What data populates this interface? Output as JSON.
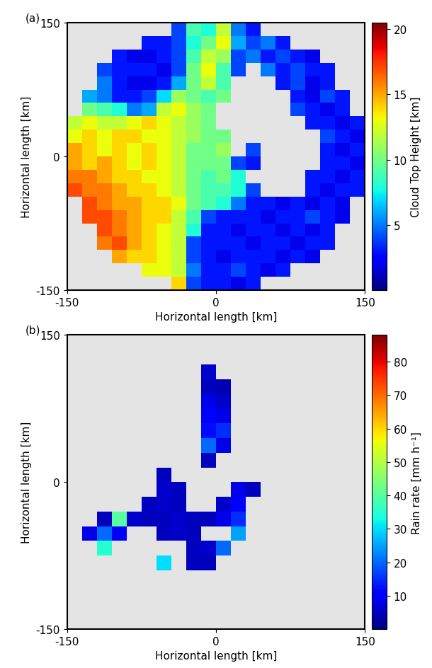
{
  "chart_data": [
    {
      "type": "heatmap",
      "panel_label": "(a)",
      "x_label": "Horizontal length [km]",
      "y_label": "Horizontal length [km]",
      "xlim": [
        -150,
        150
      ],
      "ylim": [
        -150,
        150
      ],
      "xticks": [
        -150,
        0,
        150
      ],
      "yticks": [
        -150,
        0,
        150
      ],
      "color": "jet",
      "colorbar_label": "Cloud Top Height [km]",
      "colorbar_lim": [
        0,
        20.5
      ],
      "colorbar_ticks": [
        5,
        10,
        15,
        20
      ],
      "cells": [
        [
          null,
          null,
          null,
          null,
          null,
          null,
          null,
          4,
          9,
          8,
          12,
          5,
          3,
          null,
          null,
          null,
          null,
          null,
          null,
          null
        ],
        [
          null,
          null,
          null,
          null,
          null,
          3,
          3,
          4,
          8,
          10,
          13,
          6,
          4,
          5,
          3,
          null,
          null,
          null,
          null,
          null
        ],
        [
          null,
          null,
          null,
          3,
          2,
          2,
          3,
          4,
          9,
          12,
          11,
          4,
          5,
          3,
          4,
          3,
          2,
          null,
          null,
          null
        ],
        [
          null,
          null,
          4,
          3,
          3,
          3,
          2,
          4,
          10,
          13,
          9,
          4,
          null,
          5,
          3,
          4,
          3,
          3,
          null,
          null
        ],
        [
          null,
          null,
          5,
          3,
          2,
          2,
          3,
          6,
          10,
          12,
          9,
          null,
          null,
          null,
          3,
          4,
          2,
          3,
          null,
          null
        ],
        [
          null,
          6,
          5,
          3,
          3,
          4,
          7,
          11,
          10,
          9,
          10,
          null,
          null,
          null,
          null,
          3,
          2,
          4,
          3,
          null
        ],
        [
          null,
          10,
          9,
          8,
          5,
          6,
          12,
          13,
          11,
          10,
          null,
          null,
          null,
          null,
          null,
          4,
          3,
          2,
          3,
          null
        ],
        [
          12,
          13,
          12,
          12,
          13,
          14,
          13,
          12,
          11,
          10,
          null,
          null,
          null,
          null,
          null,
          null,
          3,
          3,
          2,
          3
        ],
        [
          13,
          14,
          13,
          14,
          14,
          13,
          13,
          12,
          11,
          10,
          10,
          null,
          null,
          null,
          null,
          null,
          null,
          4,
          3,
          2
        ],
        [
          15,
          14,
          13,
          14,
          13,
          14,
          13,
          12,
          10,
          10,
          11,
          null,
          4,
          null,
          null,
          null,
          null,
          3,
          2,
          3
        ],
        [
          15,
          14,
          15,
          14,
          13,
          14,
          13,
          12,
          10,
          10,
          10,
          4,
          3,
          null,
          null,
          null,
          null,
          3,
          3,
          2
        ],
        [
          16,
          16,
          15,
          14,
          14,
          13,
          13,
          12,
          10,
          9,
          10,
          8,
          null,
          null,
          null,
          null,
          3,
          3,
          2,
          3
        ],
        [
          17,
          16,
          16,
          15,
          14,
          14,
          13,
          12,
          10,
          9,
          9,
          8,
          4,
          null,
          null,
          null,
          3,
          2,
          3,
          3
        ],
        [
          null,
          17,
          16,
          15,
          15,
          14,
          14,
          13,
          10,
          9,
          8,
          5,
          3,
          3,
          2,
          3,
          2,
          3,
          2,
          null
        ],
        [
          null,
          17,
          17,
          16,
          15,
          14,
          14,
          12,
          9,
          4,
          3,
          3,
          3,
          2,
          3,
          3,
          4,
          3,
          2,
          null
        ],
        [
          null,
          null,
          17,
          16,
          15,
          14,
          13,
          12,
          8,
          3,
          3,
          2,
          3,
          3,
          2,
          3,
          2,
          3,
          null,
          null
        ],
        [
          null,
          null,
          16,
          17,
          15,
          14,
          13,
          12,
          4,
          3,
          3,
          3,
          2,
          3,
          3,
          2,
          3,
          3,
          null,
          null
        ],
        [
          null,
          null,
          null,
          15,
          14,
          14,
          13,
          12,
          4,
          3,
          2,
          3,
          3,
          3,
          2,
          3,
          2,
          null,
          null,
          null
        ],
        [
          null,
          null,
          null,
          null,
          null,
          13,
          13,
          12,
          5,
          3,
          3,
          4,
          3,
          2,
          3,
          null,
          null,
          null,
          null,
          null
        ],
        [
          null,
          null,
          null,
          null,
          null,
          null,
          null,
          14,
          4,
          3,
          3,
          2,
          3,
          null,
          null,
          null,
          null,
          null,
          null,
          null
        ]
      ]
    },
    {
      "type": "heatmap",
      "panel_label": "(b)",
      "x_label": "Horizontal length [km]",
      "y_label": "Horizontal length [km]",
      "xlim": [
        -150,
        150
      ],
      "ylim": [
        -150,
        150
      ],
      "xticks": [
        -150,
        0,
        150
      ],
      "yticks": [
        -150,
        0,
        150
      ],
      "color": "jet",
      "colorbar_label": "Rain rate [mm h⁻¹]",
      "colorbar_lim": [
        0,
        88
      ],
      "colorbar_ticks": [
        10,
        20,
        30,
        40,
        50,
        60,
        70,
        80
      ],
      "cells": [
        [
          null,
          null,
          null,
          null,
          null,
          null,
          null,
          null,
          null,
          null,
          null,
          null,
          null,
          null,
          null,
          null,
          null,
          null,
          null,
          null
        ],
        [
          null,
          null,
          null,
          null,
          null,
          null,
          null,
          null,
          null,
          null,
          null,
          null,
          null,
          null,
          null,
          null,
          null,
          null,
          null,
          null
        ],
        [
          null,
          null,
          null,
          null,
          null,
          null,
          null,
          null,
          null,
          6,
          null,
          null,
          null,
          null,
          null,
          null,
          null,
          null,
          null,
          null
        ],
        [
          null,
          null,
          null,
          null,
          null,
          null,
          null,
          null,
          null,
          5,
          4,
          null,
          null,
          null,
          null,
          null,
          null,
          null,
          null,
          null
        ],
        [
          null,
          null,
          null,
          null,
          null,
          null,
          null,
          null,
          null,
          8,
          6,
          null,
          null,
          null,
          null,
          null,
          null,
          null,
          null,
          null
        ],
        [
          null,
          null,
          null,
          null,
          null,
          null,
          null,
          null,
          null,
          10,
          8,
          null,
          null,
          null,
          null,
          null,
          null,
          null,
          null,
          null
        ],
        [
          null,
          null,
          null,
          null,
          null,
          null,
          null,
          null,
          null,
          12,
          15,
          null,
          null,
          null,
          null,
          null,
          null,
          null,
          null,
          null
        ],
        [
          null,
          null,
          null,
          null,
          null,
          null,
          null,
          null,
          null,
          20,
          8,
          null,
          null,
          null,
          null,
          null,
          null,
          null,
          null,
          null
        ],
        [
          null,
          null,
          null,
          null,
          null,
          null,
          null,
          null,
          null,
          5,
          null,
          null,
          null,
          null,
          null,
          null,
          null,
          null,
          null,
          null
        ],
        [
          null,
          null,
          null,
          null,
          null,
          null,
          5,
          null,
          null,
          null,
          null,
          null,
          null,
          null,
          null,
          null,
          null,
          null,
          null,
          null
        ],
        [
          null,
          null,
          null,
          null,
          null,
          null,
          6,
          5,
          null,
          null,
          null,
          8,
          5,
          null,
          null,
          null,
          null,
          null,
          null,
          null
        ],
        [
          null,
          null,
          null,
          null,
          null,
          5,
          6,
          5,
          null,
          null,
          6,
          10,
          null,
          null,
          null,
          null,
          null,
          null,
          null,
          null
        ],
        [
          null,
          null,
          5,
          40,
          6,
          5,
          5,
          6,
          5,
          5,
          8,
          15,
          null,
          null,
          null,
          null,
          null,
          null,
          null,
          null
        ],
        [
          null,
          8,
          20,
          10,
          null,
          null,
          5,
          6,
          5,
          null,
          null,
          25,
          null,
          null,
          null,
          null,
          null,
          null,
          null,
          null
        ],
        [
          null,
          null,
          35,
          null,
          null,
          null,
          null,
          null,
          5,
          6,
          20,
          null,
          null,
          null,
          null,
          null,
          null,
          null,
          null,
          null
        ],
        [
          null,
          null,
          null,
          null,
          null,
          null,
          30,
          null,
          5,
          5,
          null,
          null,
          null,
          null,
          null,
          null,
          null,
          null,
          null,
          null
        ],
        [
          null,
          null,
          null,
          null,
          null,
          null,
          null,
          null,
          null,
          null,
          null,
          null,
          null,
          null,
          null,
          null,
          null,
          null,
          null,
          null
        ],
        [
          null,
          null,
          null,
          null,
          null,
          null,
          null,
          null,
          null,
          null,
          null,
          null,
          null,
          null,
          null,
          null,
          null,
          null,
          null,
          null
        ],
        [
          null,
          null,
          null,
          null,
          null,
          null,
          null,
          null,
          null,
          null,
          null,
          null,
          null,
          null,
          null,
          null,
          null,
          null,
          null,
          null
        ],
        [
          null,
          null,
          null,
          null,
          null,
          null,
          null,
          null,
          null,
          null,
          null,
          null,
          null,
          null,
          null,
          null,
          null,
          null,
          null,
          null
        ]
      ]
    }
  ]
}
